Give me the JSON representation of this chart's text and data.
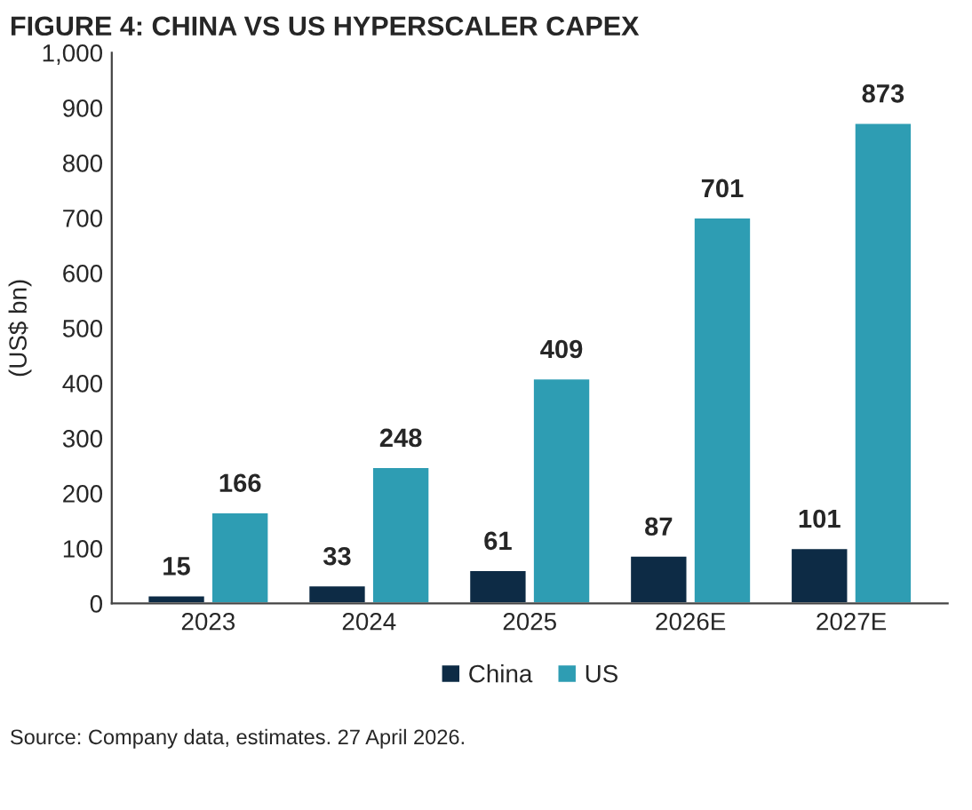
{
  "chart_data": {
    "type": "bar",
    "title": "FIGURE 4: CHINA VS US HYPERSCALER CAPEX",
    "ylabel": "(US$ bn)",
    "categories": [
      "2023",
      "2024",
      "2025",
      "2026E",
      "2027E"
    ],
    "series": [
      {
        "name": "China",
        "color": "#0d2b45",
        "values": [
          15,
          33,
          61,
          87,
          101
        ]
      },
      {
        "name": "US",
        "color": "#2e9db3",
        "values": [
          166,
          248,
          409,
          701,
          873
        ]
      }
    ],
    "ylim": [
      0,
      1000
    ],
    "yticks": [
      0,
      100,
      200,
      300,
      400,
      500,
      600,
      700,
      800,
      900,
      {
        "value": 1000,
        "label": "1,000"
      }
    ],
    "data_labels": true,
    "legend": "bottom",
    "grid": false,
    "annotations": [
      "Source: Company data, estimates. 27 April 2026."
    ]
  }
}
